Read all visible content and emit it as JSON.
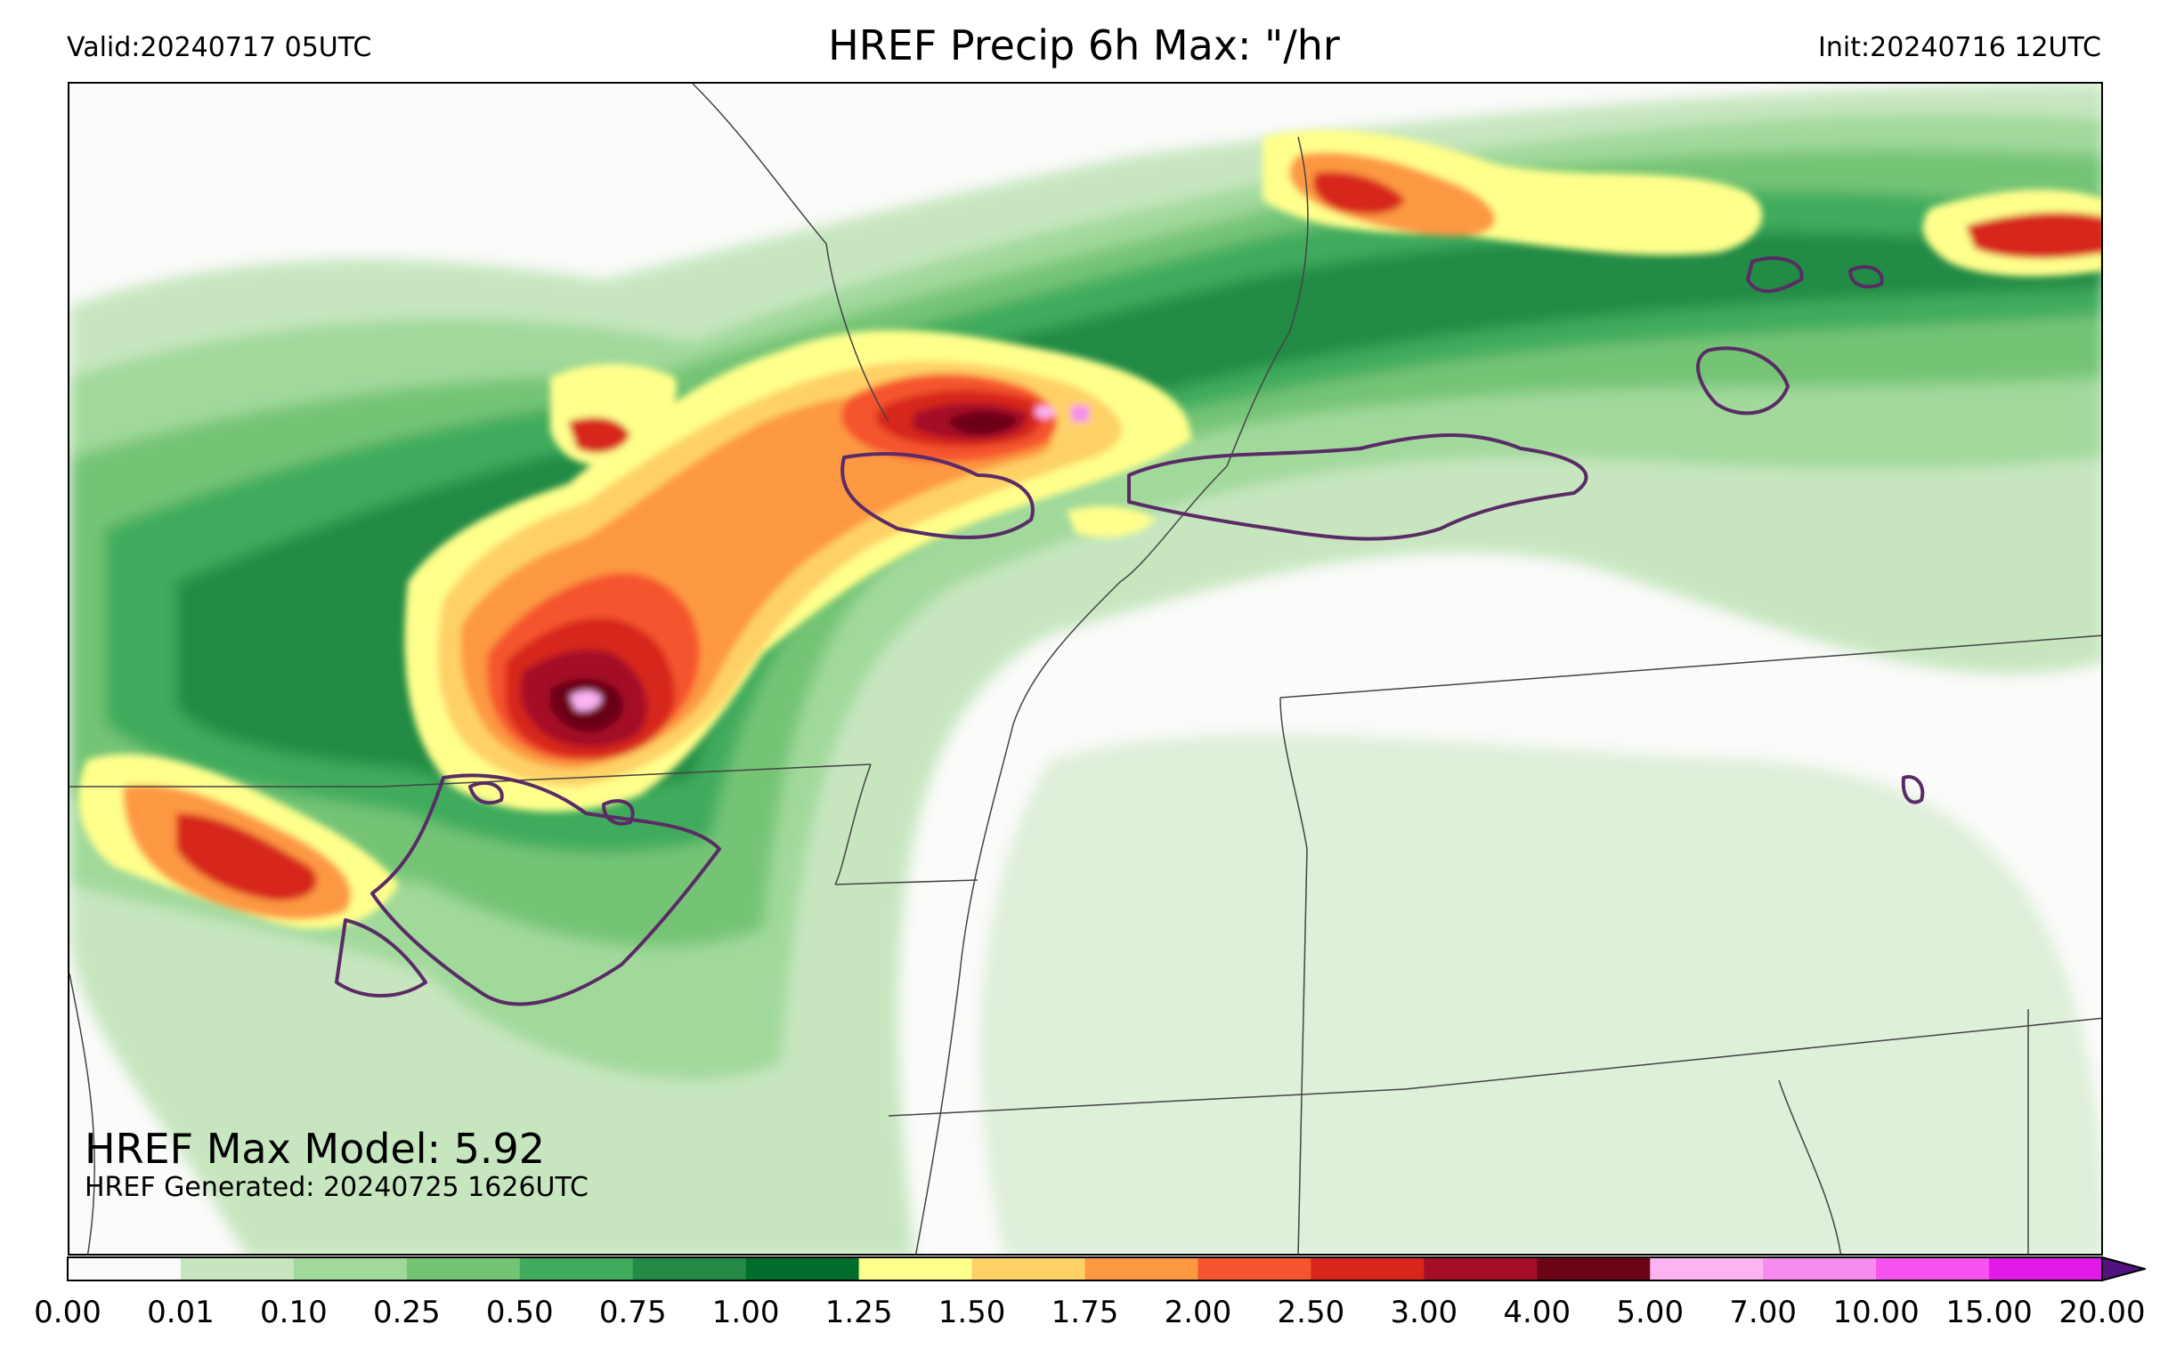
{
  "header": {
    "valid": "Valid:20240717 05UTC",
    "title": "HREF Precip 6h Max: \"/hr",
    "init": "Init:20240716 12UTC"
  },
  "annotations": {
    "max_model": "HREF Max Model: 5.92",
    "generated": "HREF Generated: 20240725 1626UTC"
  },
  "colorbar": {
    "levels": [
      "0.00",
      "0.01",
      "0.10",
      "0.25",
      "0.50",
      "0.75",
      "1.00",
      "1.25",
      "1.50",
      "1.75",
      "2.00",
      "2.50",
      "3.00",
      "4.00",
      "5.00",
      "7.00",
      "10.00",
      "15.00",
      "20.00"
    ],
    "colors": [
      "#fbfbfa",
      "#c7e6c0",
      "#a1d99b",
      "#74c476",
      "#41ab5d",
      "#238b45",
      "#006d2c",
      "#ffff8c",
      "#fed166",
      "#fd9842",
      "#f5542e",
      "#d7261b",
      "#a50f26",
      "#6b0416",
      "#fbb3f2",
      "#f78cf0",
      "#f552ef",
      "#e21ae7",
      "#8e0ec8",
      "#50137f"
    ],
    "extend": "max"
  },
  "palette": {
    "background": "#fbfbfa",
    "border": "#000000",
    "state_lines": "#444444",
    "outline": "#5a2b66"
  }
}
